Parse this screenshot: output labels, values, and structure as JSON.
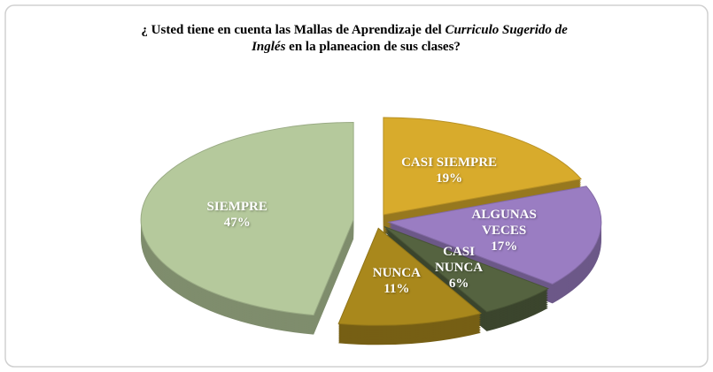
{
  "chart_data": {
    "type": "pie",
    "title": [
      "¿ Usted tiene en cuenta las Mallas de Aprendizaje  del ",
      "Curriculo Sugerido de",
      "Inglés",
      " en la planeacion de sus clases?"
    ],
    "categories": [
      "CASI SIEMPRE",
      "ALGUNAS\nVECES",
      "CASI\nNUNCA",
      "NUNCA",
      "SIEMPRE"
    ],
    "values": [
      19,
      17,
      6,
      11,
      47
    ],
    "value_labels": [
      "19%",
      "17%",
      "6%",
      "11%",
      "47%"
    ],
    "colors": [
      "#d8ab2c",
      "#9a7dc2",
      "#556340",
      "#a9881c",
      "#b5c99c"
    ]
  }
}
